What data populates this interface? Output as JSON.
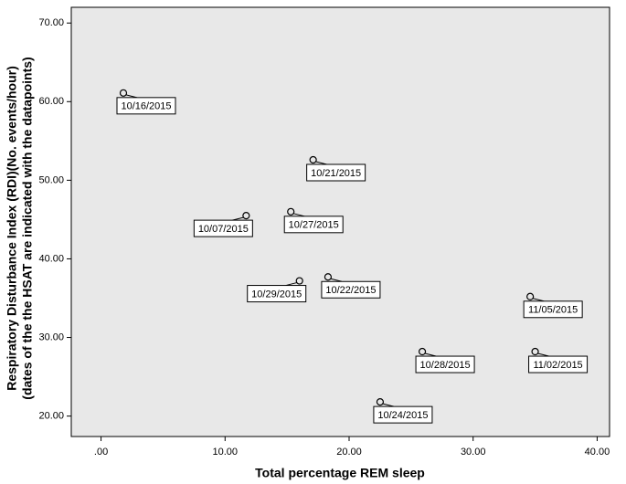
{
  "chart_data": {
    "type": "scatter",
    "x_label": "Total percentage REM sleep",
    "y_label": [
      "Respiratory Disturbance Index (RDI)(No. events/hour)",
      "(dates of the the HSAT are indicated with the datapoints)"
    ],
    "x": [
      1.8,
      17.1,
      11.7,
      15.3,
      16.0,
      18.3,
      25.9,
      34.6,
      35.0,
      22.5
    ],
    "values": [
      61.1,
      52.6,
      45.5,
      46.0,
      37.2,
      37.7,
      28.2,
      35.2,
      28.2,
      21.8
    ],
    "point_labels": [
      "10/16/2015",
      "10/21/2015",
      "10/07/2015",
      "10/27/2015",
      "10/29/2015",
      "10/22/2015",
      "10/28/2015",
      "11/05/2015",
      "11/02/2015",
      "10/24/2015"
    ],
    "xlim": [
      -2.4,
      41.0
    ],
    "ylim": [
      17.4,
      72.0
    ],
    "xticks": [
      {
        "value": 0,
        "label": ".00"
      },
      {
        "value": 10,
        "label": "10.00"
      },
      {
        "value": 20,
        "label": "20.00"
      },
      {
        "value": 30,
        "label": "30.00"
      },
      {
        "value": 40,
        "label": "40.00"
      }
    ],
    "yticks": [
      {
        "value": 20,
        "label": "20.00"
      },
      {
        "value": 30,
        "label": "30.00"
      },
      {
        "value": 40,
        "label": "40.00"
      },
      {
        "value": 50,
        "label": "50.00"
      },
      {
        "value": 60,
        "label": "60.00"
      },
      {
        "value": 70,
        "label": "70.00"
      }
    ],
    "background": "#e8e8e8",
    "marker_color": "#000000"
  }
}
